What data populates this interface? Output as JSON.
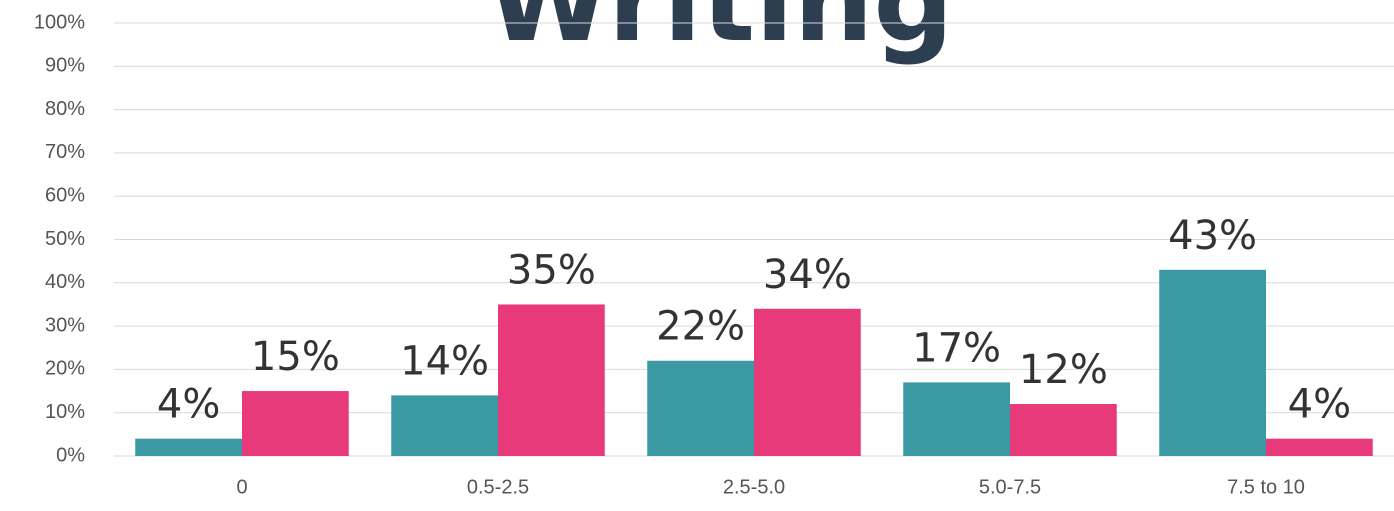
{
  "chart_data": {
    "type": "bar",
    "title": "Writing",
    "categories": [
      "0",
      "0.5-2.5",
      "2.5-5.0",
      "5.0-7.5",
      "7.5 to 10"
    ],
    "series": [
      {
        "color": "#3a99a3",
        "values": [
          4,
          14,
          22,
          17,
          43
        ],
        "value_labels": [
          "4%",
          "14%",
          "22%",
          "17%",
          "43%"
        ]
      },
      {
        "color": "#e8397a",
        "values": [
          15,
          35,
          34,
          12,
          4
        ],
        "value_labels": [
          "15%",
          "35%",
          "34%",
          "12%",
          "4%"
        ]
      }
    ],
    "ylim": [
      0,
      100
    ],
    "yticks": [
      {
        "value": 0,
        "label": "0%"
      },
      {
        "value": 10,
        "label": "10%"
      },
      {
        "value": 20,
        "label": "20%"
      },
      {
        "value": 30,
        "label": "30%"
      },
      {
        "value": 40,
        "label": "40%"
      },
      {
        "value": 50,
        "label": "50%"
      },
      {
        "value": 60,
        "label": "60%"
      },
      {
        "value": 70,
        "label": "70%"
      },
      {
        "value": 80,
        "label": "80%"
      },
      {
        "value": 90,
        "label": "90%"
      },
      {
        "value": 100,
        "label": "100%"
      }
    ],
    "grid": true
  }
}
